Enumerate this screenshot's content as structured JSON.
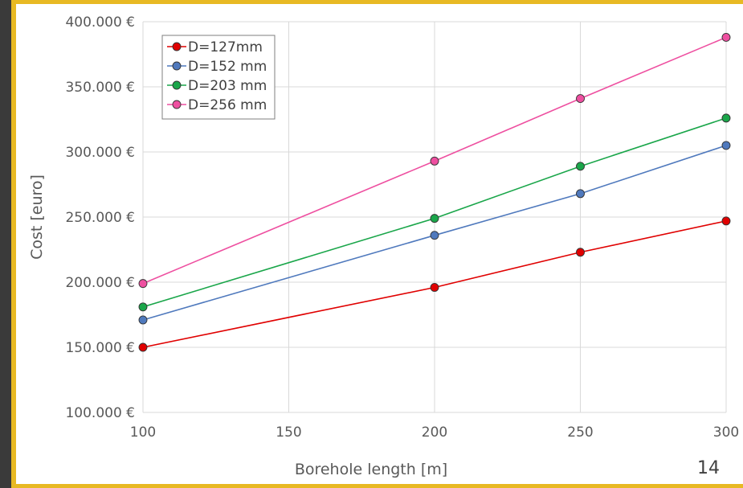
{
  "slide_number": "14",
  "chart_data": {
    "type": "line",
    "title": "",
    "xlabel": "Borehole length [m]",
    "ylabel": "Cost [euro]",
    "x": [
      100,
      200,
      250,
      300
    ],
    "xlim": [
      100,
      300
    ],
    "xticks": [
      100,
      150,
      200,
      250,
      300
    ],
    "xtick_labels": [
      "100",
      "150",
      "200",
      "250",
      "300"
    ],
    "ylim": [
      100000,
      400000
    ],
    "yticks": [
      100000,
      150000,
      200000,
      250000,
      300000,
      350000,
      400000
    ],
    "ytick_labels": [
      "100.000 €",
      "150.000 €",
      "200.000 €",
      "250.000 €",
      "300.000 €",
      "350.000 €",
      "400.000 €"
    ],
    "grid": true,
    "legend_position": "top-left",
    "series": [
      {
        "name": "D=127mm",
        "color": "#e00000",
        "values": [
          150000,
          196000,
          223000,
          247000
        ]
      },
      {
        "name": "D=152 mm",
        "color": "#4f79bd",
        "values": [
          171000,
          236000,
          268000,
          305000
        ]
      },
      {
        "name": "D=203 mm",
        "color": "#1aa64a",
        "values": [
          181000,
          249000,
          289000,
          326000
        ]
      },
      {
        "name": "D=256 mm",
        "color": "#ee4fa0",
        "values": [
          199000,
          293000,
          341000,
          388000
        ]
      }
    ]
  }
}
